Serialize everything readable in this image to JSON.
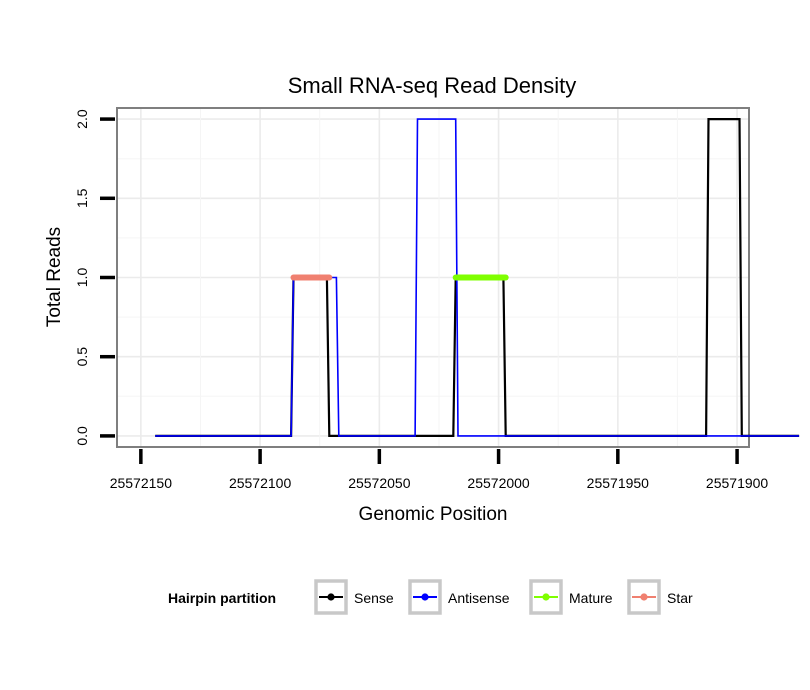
{
  "chart_data": {
    "type": "line",
    "title": "Small RNA-seq Read Density",
    "xlabel": "Genomic Position",
    "ylabel": "Total Reads",
    "x_reversed": true,
    "xlim": [
      25572160,
      25571895
    ],
    "ylim": [
      -0.07,
      2.07
    ],
    "x_ticks": [
      25572150,
      25572100,
      25572050,
      25572000,
      25571950,
      25571900
    ],
    "x_tick_labels": [
      "25572150",
      "25572100",
      "25572050",
      "25572000",
      "25571950",
      "25571900"
    ],
    "y_ticks": [
      0,
      0.5,
      1,
      1.5,
      2
    ],
    "y_tick_labels": [
      "0.0",
      "0.5",
      "1.0",
      "1.5",
      "2.0"
    ],
    "grid": true,
    "legend_position": "bottom",
    "legend_title": "Hairpin partition",
    "series": [
      {
        "name": "Sense",
        "color": "#000000",
        "width": 2.2,
        "x": [
          25572144,
          25572087,
          25572086,
          25572072,
          25572071,
          25572019,
          25572018,
          25571998,
          25571997,
          25571913,
          25571912,
          25571899,
          25571898,
          25571874
        ],
        "y": [
          0,
          0,
          1,
          1,
          0,
          0,
          1,
          1,
          0,
          0,
          2,
          2,
          0,
          0
        ]
      },
      {
        "name": "Antisense",
        "color": "#0000ff",
        "width": 1.6,
        "x": [
          25572144,
          25572087,
          25572086,
          25572068,
          25572067,
          25572035,
          25572034,
          25572018,
          25572017,
          25571874
        ],
        "y": [
          0,
          0,
          1,
          1,
          0,
          0,
          2,
          2,
          0,
          0
        ]
      },
      {
        "name": "Mature",
        "color": "#7fff00",
        "width": 6,
        "x": [
          25572018,
          25571997
        ],
        "y": [
          1,
          1
        ]
      },
      {
        "name": "Star",
        "color": "#f08070",
        "width": 6,
        "x": [
          25572086,
          25572071
        ],
        "y": [
          1,
          1
        ]
      }
    ]
  }
}
